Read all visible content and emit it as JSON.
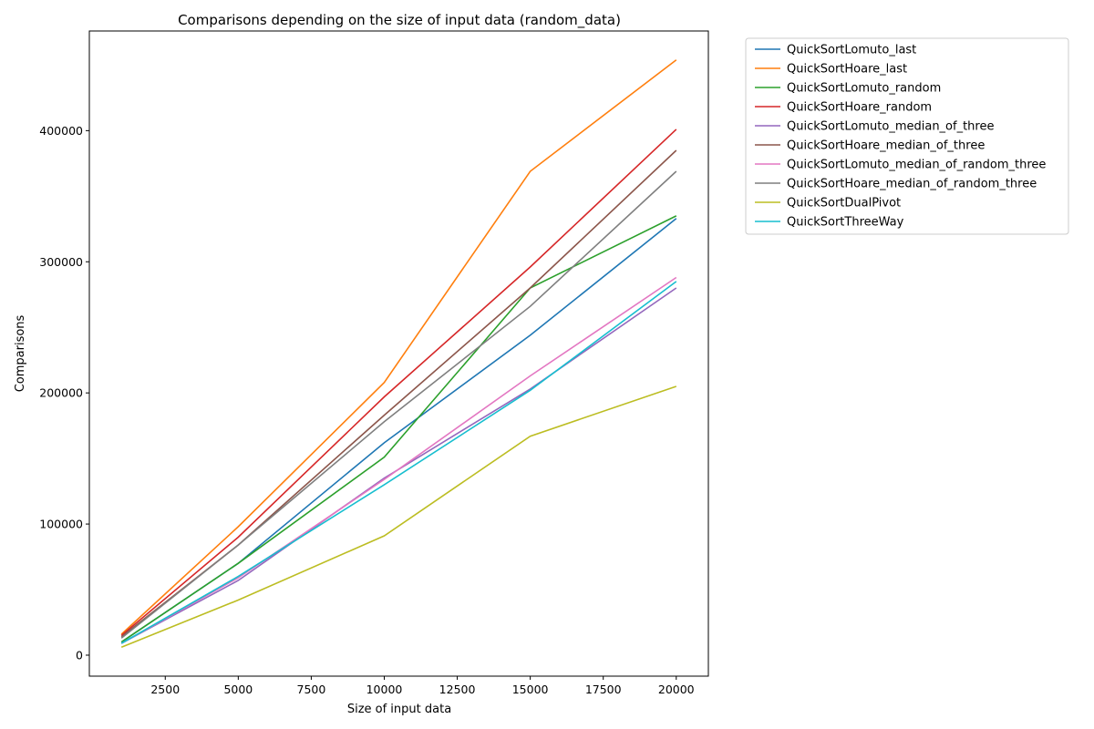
{
  "chart_data": {
    "type": "line",
    "title": "Comparisons depending on the size of input data (random_data)",
    "xlabel": "Size of input data",
    "ylabel": "Comparisons",
    "x": [
      1000,
      5000,
      10000,
      15000,
      20000
    ],
    "xlim": [
      -100,
      21100
    ],
    "ylim": [
      -16000,
      476000
    ],
    "xticks": [
      2500,
      5000,
      7500,
      10000,
      12500,
      15000,
      17500,
      20000
    ],
    "yticks": [
      0,
      100000,
      200000,
      300000,
      400000
    ],
    "grid": false,
    "legend_position": "outside-top-right",
    "series": [
      {
        "name": "QuickSortLomuto_last",
        "color": "#1f77b4",
        "values": [
          10000,
          70000,
          162000,
          244000,
          333000
        ]
      },
      {
        "name": "QuickSortHoare_last",
        "color": "#ff7f0e",
        "values": [
          16000,
          98000,
          208000,
          369000,
          454000
        ]
      },
      {
        "name": "QuickSortLomuto_random",
        "color": "#2ca02c",
        "values": [
          10000,
          70000,
          151000,
          280000,
          335000
        ]
      },
      {
        "name": "QuickSortHoare_random",
        "color": "#d62728",
        "values": [
          15000,
          90000,
          197000,
          296000,
          401000
        ]
      },
      {
        "name": "QuickSortLomuto_median_of_three",
        "color": "#9467bd",
        "values": [
          9000,
          57000,
          135000,
          203000,
          280000
        ]
      },
      {
        "name": "QuickSortHoare_median_of_three",
        "color": "#8c564b",
        "values": [
          14000,
          84000,
          183000,
          280000,
          385000
        ]
      },
      {
        "name": "QuickSortLomuto_median_of_random_three",
        "color": "#e377c2",
        "values": [
          9000,
          59000,
          134000,
          213000,
          288000
        ]
      },
      {
        "name": "QuickSortHoare_median_of_random_three",
        "color": "#7f7f7f",
        "values": [
          13000,
          84000,
          178000,
          266000,
          369000
        ]
      },
      {
        "name": "QuickSortDualPivot",
        "color": "#bcbd22",
        "values": [
          6000,
          42000,
          91000,
          167000,
          205000
        ]
      },
      {
        "name": "QuickSortThreeWay",
        "color": "#17becf",
        "values": [
          9000,
          60000,
          130000,
          202000,
          285000
        ]
      }
    ]
  }
}
